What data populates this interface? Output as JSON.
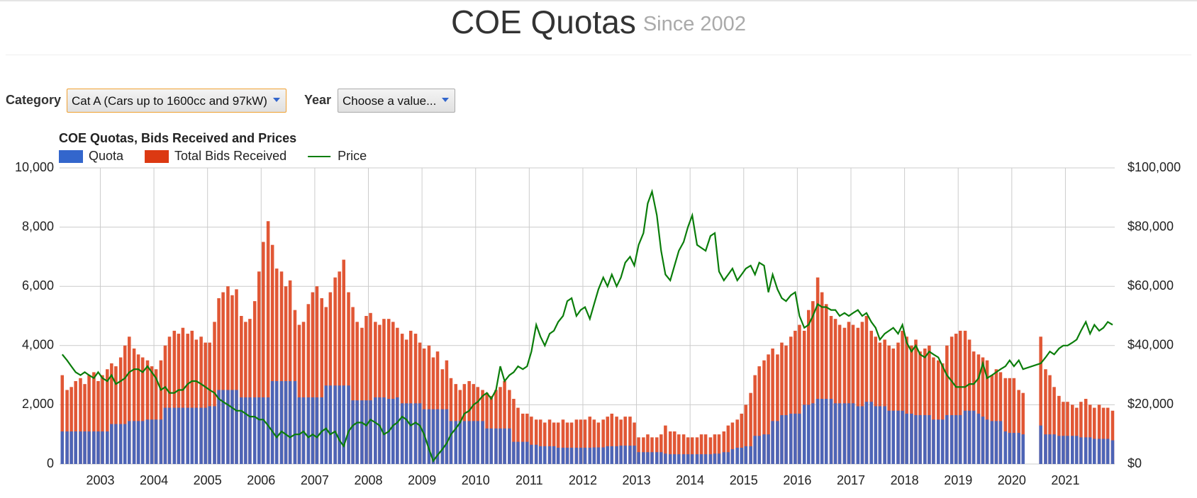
{
  "header": {
    "title": "COE Quotas",
    "subtitle": "Since 2002"
  },
  "controls": {
    "category_label": "Category",
    "category_value": "Cat A (Cars up to 1600cc and 97kW)",
    "year_label": "Year",
    "year_value": "Choose a value..."
  },
  "chart_data": {
    "type": "bar",
    "title": "COE Quotas, Bids Received and Prices",
    "grid": true,
    "legend": "top-left",
    "x": [
      2002.29,
      2002.38,
      2002.46,
      2002.54,
      2002.63,
      2002.71,
      2002.79,
      2002.88,
      2002.96,
      2003.04,
      2003.13,
      2003.21,
      2003.29,
      2003.38,
      2003.46,
      2003.54,
      2003.63,
      2003.71,
      2003.79,
      2003.88,
      2003.96,
      2004.04,
      2004.13,
      2004.21,
      2004.29,
      2004.38,
      2004.46,
      2004.54,
      2004.63,
      2004.71,
      2004.79,
      2004.88,
      2004.96,
      2005.04,
      2005.13,
      2005.21,
      2005.29,
      2005.38,
      2005.46,
      2005.54,
      2005.63,
      2005.71,
      2005.79,
      2005.88,
      2005.96,
      2006.04,
      2006.13,
      2006.21,
      2006.29,
      2006.38,
      2006.46,
      2006.54,
      2006.63,
      2006.71,
      2006.79,
      2006.88,
      2006.96,
      2007.04,
      2007.13,
      2007.21,
      2007.29,
      2007.38,
      2007.46,
      2007.54,
      2007.63,
      2007.71,
      2007.79,
      2007.88,
      2007.96,
      2008.04,
      2008.13,
      2008.21,
      2008.29,
      2008.38,
      2008.46,
      2008.54,
      2008.63,
      2008.71,
      2008.79,
      2008.88,
      2008.96,
      2009.04,
      2009.13,
      2009.21,
      2009.29,
      2009.38,
      2009.46,
      2009.54,
      2009.63,
      2009.71,
      2009.79,
      2009.88,
      2009.96,
      2010.04,
      2010.13,
      2010.21,
      2010.29,
      2010.38,
      2010.46,
      2010.54,
      2010.63,
      2010.71,
      2010.79,
      2010.88,
      2010.96,
      2011.04,
      2011.13,
      2011.21,
      2011.29,
      2011.38,
      2011.46,
      2011.54,
      2011.63,
      2011.71,
      2011.79,
      2011.88,
      2011.96,
      2012.04,
      2012.13,
      2012.21,
      2012.29,
      2012.38,
      2012.46,
      2012.54,
      2012.63,
      2012.71,
      2012.79,
      2012.88,
      2012.96,
      2013.04,
      2013.13,
      2013.21,
      2013.29,
      2013.38,
      2013.46,
      2013.54,
      2013.63,
      2013.71,
      2013.79,
      2013.88,
      2013.96,
      2014.04,
      2014.13,
      2014.21,
      2014.29,
      2014.38,
      2014.46,
      2014.54,
      2014.63,
      2014.71,
      2014.79,
      2014.88,
      2014.96,
      2015.04,
      2015.13,
      2015.21,
      2015.29,
      2015.38,
      2015.46,
      2015.54,
      2015.63,
      2015.71,
      2015.79,
      2015.88,
      2015.96,
      2016.04,
      2016.13,
      2016.21,
      2016.29,
      2016.38,
      2016.46,
      2016.54,
      2016.63,
      2016.71,
      2016.79,
      2016.88,
      2016.96,
      2017.04,
      2017.13,
      2017.21,
      2017.29,
      2017.38,
      2017.46,
      2017.54,
      2017.63,
      2017.71,
      2017.79,
      2017.88,
      2017.96,
      2018.04,
      2018.13,
      2018.21,
      2018.29,
      2018.38,
      2018.46,
      2018.54,
      2018.63,
      2018.71,
      2018.79,
      2018.88,
      2018.96,
      2019.04,
      2019.13,
      2019.21,
      2019.29,
      2019.38,
      2019.46,
      2019.54,
      2019.63,
      2019.71,
      2019.79,
      2019.88,
      2019.96,
      2020.04,
      2020.13,
      2020.21,
      2020.54,
      2020.63,
      2020.71,
      2020.79,
      2020.88,
      2020.96,
      2021.04,
      2021.13,
      2021.21,
      2021.29,
      2021.38,
      2021.46,
      2021.54,
      2021.63,
      2021.71,
      2021.79,
      2021.88
    ],
    "series": [
      {
        "name": "Quota",
        "type": "bar",
        "color": "#3366cc",
        "values": [
          1100,
          1100,
          1100,
          1100,
          1100,
          1100,
          1100,
          1100,
          1100,
          1100,
          1100,
          1350,
          1350,
          1350,
          1350,
          1450,
          1450,
          1450,
          1450,
          1500,
          1500,
          1500,
          1500,
          1900,
          1900,
          1900,
          1900,
          1900,
          1900,
          1900,
          1900,
          1900,
          1900,
          1950,
          1950,
          2500,
          2500,
          2500,
          2500,
          2500,
          2250,
          2250,
          2250,
          2250,
          2250,
          2250,
          2250,
          2800,
          2800,
          2800,
          2800,
          2800,
          2800,
          2250,
          2250,
          2250,
          2250,
          2250,
          2250,
          2650,
          2650,
          2650,
          2650,
          2650,
          2650,
          2150,
          2150,
          2150,
          2150,
          2150,
          2250,
          2250,
          2250,
          2200,
          2200,
          2250,
          2050,
          2050,
          2050,
          2050,
          2050,
          1850,
          1850,
          1850,
          1850,
          1850,
          1850,
          1450,
          1450,
          1450,
          1450,
          1450,
          1450,
          1450,
          1450,
          1200,
          1200,
          1200,
          1200,
          1200,
          1200,
          750,
          750,
          750,
          750,
          650,
          650,
          600,
          600,
          600,
          600,
          550,
          550,
          550,
          550,
          550,
          550,
          550,
          550,
          560,
          560,
          560,
          600,
          600,
          600,
          620,
          620,
          620,
          620,
          400,
          400,
          400,
          400,
          400,
          400,
          350,
          330,
          330,
          330,
          330,
          330,
          330,
          330,
          330,
          330,
          330,
          350,
          350,
          400,
          400,
          500,
          550,
          550,
          600,
          600,
          950,
          950,
          1000,
          1000,
          1450,
          1450,
          1650,
          1650,
          1700,
          1700,
          1700,
          2000,
          2000,
          2050,
          2200,
          2200,
          2200,
          2200,
          2050,
          2050,
          2050,
          2050,
          2050,
          1950,
          1950,
          2100,
          2100,
          1950,
          1950,
          1950,
          1800,
          1800,
          1800,
          1800,
          1700,
          1700,
          1650,
          1650,
          1650,
          1650,
          1500,
          1500,
          1500,
          1650,
          1650,
          1650,
          1650,
          1800,
          1800,
          1800,
          1700,
          1600,
          1500,
          1450,
          1450,
          1450,
          1100,
          1050,
          1050,
          1050,
          1000,
          1300,
          1000,
          1000,
          1000,
          950,
          950,
          950,
          950,
          950,
          900,
          900,
          900,
          850,
          850,
          850,
          850,
          800
        ]
      },
      {
        "name": "Total Bids Received",
        "type": "bar",
        "color": "#dc3912",
        "values": [
          3000,
          2500,
          2600,
          2800,
          2900,
          2700,
          3000,
          3100,
          2800,
          3000,
          3200,
          3400,
          3300,
          3600,
          4000,
          4300,
          3900,
          3700,
          3600,
          3500,
          3300,
          3200,
          3500,
          4000,
          4300,
          4500,
          4400,
          4600,
          4400,
          4500,
          4200,
          4300,
          4100,
          4100,
          4800,
          5600,
          5800,
          6000,
          5700,
          5900,
          5000,
          4800,
          4900,
          5500,
          6500,
          7500,
          8200,
          7400,
          6600,
          6500,
          6000,
          6200,
          5200,
          4700,
          4800,
          5400,
          5800,
          6000,
          5600,
          5300,
          5800,
          6300,
          6500,
          6900,
          5800,
          5300,
          4800,
          4600,
          5000,
          5100,
          4800,
          4700,
          4900,
          4900,
          4800,
          4600,
          4400,
          4200,
          4500,
          4400,
          4100,
          3900,
          4000,
          3600,
          3800,
          3200,
          3500,
          2900,
          2700,
          2500,
          2700,
          2800,
          2700,
          2600,
          2500,
          2400,
          2300,
          2500,
          2600,
          2800,
          2500,
          2200,
          1900,
          1700,
          1700,
          1600,
          1500,
          1500,
          1400,
          1500,
          1400,
          1400,
          1500,
          1400,
          1400,
          1500,
          1500,
          1500,
          1600,
          1500,
          1400,
          1500,
          1600,
          1700,
          1600,
          1500,
          1600,
          1600,
          1400,
          900,
          900,
          1000,
          900,
          900,
          1000,
          1300,
          1100,
          1100,
          1000,
          1000,
          900,
          900,
          900,
          1000,
          1000,
          900,
          1000,
          1000,
          1100,
          1300,
          1400,
          1500,
          1700,
          2000,
          2400,
          3000,
          3300,
          3500,
          3700,
          3900,
          3700,
          4100,
          4000,
          4300,
          4500,
          4700,
          4500,
          5200,
          5500,
          6300,
          5800,
          5400,
          5000,
          4900,
          4700,
          4600,
          4800,
          4700,
          4600,
          4800,
          5000,
          4500,
          4300,
          4100,
          4200,
          4000,
          3900,
          4100,
          4500,
          4300,
          4000,
          4200,
          3800,
          3900,
          4000,
          3600,
          3500,
          3400,
          4000,
          4300,
          4400,
          4500,
          4500,
          4200,
          3800,
          3700,
          3600,
          3500,
          3000,
          3200,
          3100,
          2900,
          2900,
          2900,
          2500,
          2400,
          4300,
          3200,
          3000,
          2600,
          2300,
          2100,
          2100,
          2000,
          1900,
          2100,
          2200,
          2000,
          1900,
          2000,
          1900,
          1900,
          1800
        ]
      },
      {
        "name": "Price",
        "type": "line",
        "axis": "y2",
        "color": "#0a7d0a",
        "values": [
          37000,
          35000,
          33000,
          31000,
          30000,
          31000,
          30000,
          29000,
          31000,
          29000,
          28000,
          30000,
          27000,
          28000,
          29000,
          31000,
          32000,
          32000,
          31000,
          33000,
          31000,
          29000,
          25000,
          26000,
          24000,
          24000,
          25000,
          25000,
          27000,
          28000,
          28000,
          27000,
          26000,
          25000,
          24000,
          22000,
          21000,
          20000,
          19000,
          18000,
          18000,
          17000,
          16000,
          16000,
          15000,
          15000,
          13000,
          11000,
          9000,
          11000,
          10000,
          9000,
          10000,
          10000,
          11000,
          9000,
          10000,
          9000,
          11000,
          12000,
          10000,
          11000,
          8000,
          6000,
          11000,
          13000,
          14000,
          14000,
          13000,
          15000,
          14000,
          13000,
          10000,
          11000,
          13000,
          14000,
          16000,
          15000,
          13000,
          14000,
          13000,
          10000,
          5000,
          1000,
          3000,
          5000,
          7000,
          10000,
          12000,
          14000,
          17000,
          18000,
          20000,
          21000,
          23000,
          24000,
          22000,
          25000,
          33000,
          28000,
          30000,
          31000,
          33000,
          32000,
          33000,
          38000,
          47000,
          43000,
          40000,
          44000,
          45000,
          48000,
          50000,
          55000,
          56000,
          50000,
          52000,
          53000,
          49000,
          54000,
          59000,
          63000,
          60000,
          64000,
          60000,
          63000,
          68000,
          70000,
          67000,
          74000,
          78000,
          88000,
          92000,
          84000,
          72000,
          64000,
          62000,
          67000,
          72000,
          75000,
          80000,
          84000,
          74000,
          73000,
          72000,
          77000,
          78000,
          65000,
          62000,
          64000,
          66000,
          62000,
          64000,
          66000,
          67000,
          64000,
          68000,
          67000,
          58000,
          64000,
          59000,
          56000,
          55000,
          57000,
          58000,
          50000,
          46000,
          47000,
          50000,
          54000,
          53000,
          53000,
          52000,
          52000,
          50000,
          51000,
          50000,
          51000,
          52000,
          50000,
          51000,
          48000,
          46000,
          42000,
          44000,
          45000,
          46000,
          44000,
          47000,
          41000,
          38000,
          40000,
          37000,
          36000,
          38000,
          37000,
          36000,
          33000,
          30000,
          28000,
          26000,
          26000,
          26000,
          27000,
          27000,
          29000,
          34000,
          29000,
          30000,
          31000,
          32000,
          33000,
          35000,
          33000,
          35000,
          32000,
          34000,
          36000,
          38000,
          37000,
          39000,
          40000,
          40000,
          41000,
          42000,
          45000,
          48000,
          44000,
          47000,
          45000,
          46000,
          48000,
          47000
        ]
      }
    ],
    "xlim": [
      2002.24,
      2021.92
    ],
    "xticks": [
      2003,
      2004,
      2005,
      2006,
      2007,
      2008,
      2009,
      2010,
      2011,
      2012,
      2013,
      2014,
      2015,
      2016,
      2017,
      2018,
      2019,
      2020,
      2021
    ],
    "ylim": [
      0,
      10000
    ],
    "yticks": [
      0,
      {
        "value": 2000,
        "label": "2,000"
      },
      {
        "value": 4000,
        "label": "4,000"
      },
      {
        "value": 6000,
        "label": "6,000"
      },
      {
        "value": 8000,
        "label": "8,000"
      },
      {
        "value": 10000,
        "label": "10,000"
      }
    ],
    "y2lim": [
      0,
      100000
    ],
    "y2ticks": [
      {
        "value": 0,
        "label": "$0"
      },
      {
        "value": 20000,
        "label": "$20,000"
      },
      {
        "value": 40000,
        "label": "$40,000"
      },
      {
        "value": 60000,
        "label": "$60,000"
      },
      {
        "value": 80000,
        "label": "$80,000"
      },
      {
        "value": 100000,
        "label": "$100,000"
      }
    ]
  }
}
